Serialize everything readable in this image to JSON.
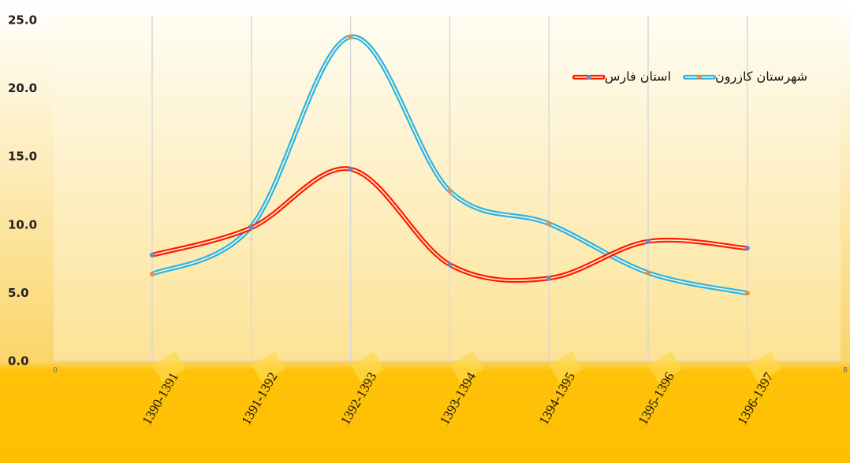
{
  "chart_data": {
    "type": "line",
    "categories": [
      "1390-1391",
      "1391-1392",
      "1392-1393",
      "1393-1394",
      "1394-1395",
      "1395-1396",
      "1396-1397"
    ],
    "series": [
      {
        "name": "شهرستان کازرون",
        "color": "#2cb3e6",
        "marker_color": "#f08a3c",
        "values": [
          6.4,
          9.9,
          23.8,
          12.5,
          10.1,
          6.5,
          5.0
        ]
      },
      {
        "name": "استان فارس",
        "color": "#ff1a00",
        "marker_color": "#5b8fd4",
        "values": [
          7.8,
          9.8,
          14.1,
          7.1,
          6.1,
          8.8,
          8.3
        ]
      }
    ],
    "ylim": [
      0,
      25
    ],
    "yticks": [
      {
        "value": 0,
        "label": "0.0"
      },
      {
        "value": 5,
        "label": "5.0"
      },
      {
        "value": 10,
        "label": "10.0"
      },
      {
        "value": 15,
        "label": "15.0"
      },
      {
        "value": 20,
        "label": "20.0"
      },
      {
        "value": 25,
        "label": "25.0"
      }
    ],
    "x_end_labels": [
      "0",
      "8"
    ],
    "grid": true,
    "smooth": true,
    "legend": "top-right"
  }
}
